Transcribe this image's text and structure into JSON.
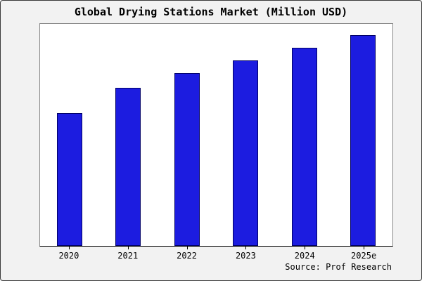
{
  "title": "Global Drying Stations Market (Million USD)",
  "source": "Source: Prof Research",
  "colors": {
    "bar_fill": "#1c1ce0",
    "bar_border": "#000066",
    "background": "#f2f2f2",
    "plot_background": "#ffffff"
  },
  "chart_data": {
    "type": "bar",
    "title": "Global Drying Stations Market (Million USD)",
    "categories": [
      "2020",
      "2021",
      "2022",
      "2023",
      "2024",
      "2025e"
    ],
    "values": [
      63,
      75,
      82,
      88,
      94,
      100
    ],
    "xlabel": "",
    "ylabel": "",
    "ylim": [
      0,
      107
    ],
    "grid": false,
    "legend_position": "none",
    "source_annotation": "Source: Prof Research"
  }
}
